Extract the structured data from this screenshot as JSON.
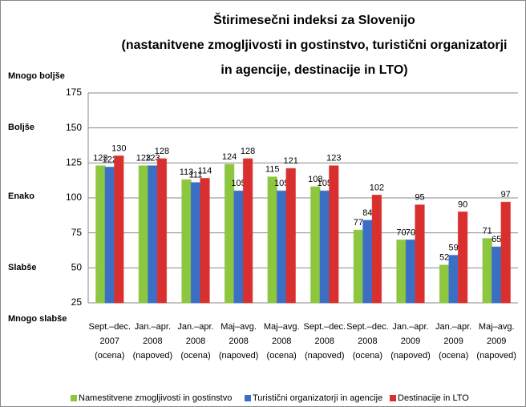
{
  "chart_data": {
    "type": "bar",
    "title": [
      "Štirimesečni indeksi za Slovenijo",
      "(nastanitvene zmogljivosti in gostinstvo, turistični organizatorji",
      "in agencije, destinacije in LTO)"
    ],
    "annotations": [
      "Mnogo boljše",
      "Boljše",
      "Enako",
      "Slabše",
      "Mnogo slabše"
    ],
    "categories": [
      [
        "Sept.–dec.",
        "2007",
        "(ocena)"
      ],
      [
        "Jan.–apr.",
        "2008",
        "(napoved)"
      ],
      [
        "Jan.–apr.",
        "2008",
        "(ocena)"
      ],
      [
        "Maj–avg.",
        "2008",
        "(napoved)"
      ],
      [
        "Maj–avg.",
        "2008",
        "(ocena)"
      ],
      [
        "Sept.–dec.",
        "2008",
        "(napoved)"
      ],
      [
        "Sept.–dec.",
        "2008",
        "(ocena)"
      ],
      [
        "Jan.–apr.",
        "2009",
        "(napoved)"
      ],
      [
        "Jan.–apr.",
        "2009",
        "(ocena)"
      ],
      [
        "Maj–avg.",
        "2009",
        "(napoved)"
      ]
    ],
    "series": [
      {
        "name": "Namestitvene zmogljivosti in gostinstvo",
        "color": "#8dc63f",
        "values": [
          123,
          123,
          113,
          124,
          115,
          108,
          77,
          70,
          52,
          71
        ]
      },
      {
        "name": "Turistični organizatorji in agencije",
        "color": "#3b6fc6",
        "values": [
          122,
          123,
          111,
          105,
          105,
          105,
          84,
          70,
          59,
          65
        ]
      },
      {
        "name": "Destinacije in LTO",
        "color": "#d9302f",
        "values": [
          130,
          128,
          114,
          128,
          121,
          123,
          102,
          95,
          90,
          97
        ]
      }
    ],
    "ylim": [
      25,
      175
    ],
    "yticks": [
      25,
      50,
      75,
      100,
      125,
      150,
      175
    ],
    "grid": true,
    "legend": "bottom"
  }
}
